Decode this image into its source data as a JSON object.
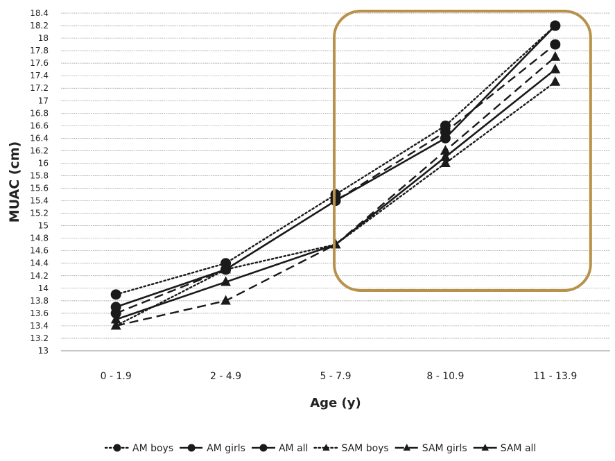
{
  "chart_data": {
    "type": "line",
    "xlabel": "Age (y)",
    "ylabel": "MUAC (cm)",
    "categories": [
      "0 - 1.9",
      "2 - 4.9",
      "5 - 7.9",
      "8 - 10.9",
      "11 - 13.9"
    ],
    "ylim": [
      13,
      18.4
    ],
    "y_ticks": [
      "13",
      "13.2",
      "13.4",
      "13.6",
      "13.8",
      "14",
      "14.2",
      "14.4",
      "14.6",
      "14.8",
      "15",
      "15.2",
      "15.4",
      "15.6",
      "15.8",
      "16",
      "16.2",
      "16.4",
      "16.6",
      "16.8",
      "17",
      "17.2",
      "17.4",
      "17.6",
      "17.8",
      "18",
      "18.2",
      "18.4"
    ],
    "grid": true,
    "legend_position": "bottom",
    "highlight_box": {
      "from_category": "5 - 7.9",
      "to_category": "11 - 13.9",
      "color": "#B8914A"
    },
    "series": [
      {
        "name": "AM boys",
        "style": "dotted",
        "marker": "circle",
        "values": [
          13.9,
          14.4,
          15.5,
          16.6,
          18.2
        ]
      },
      {
        "name": "AM girls",
        "style": "dashed",
        "marker": "circle",
        "values": [
          13.6,
          14.3,
          15.4,
          16.5,
          17.9
        ]
      },
      {
        "name": "AM all",
        "style": "solid",
        "marker": "circle",
        "values": [
          13.7,
          14.3,
          15.4,
          16.4,
          18.2
        ]
      },
      {
        "name": "SAM boys",
        "style": "dotted",
        "marker": "triangle",
        "values": [
          13.4,
          14.3,
          14.7,
          16.0,
          17.3
        ]
      },
      {
        "name": "SAM girls",
        "style": "dashed",
        "marker": "triangle",
        "values": [
          13.4,
          13.8,
          14.7,
          16.2,
          17.7
        ]
      },
      {
        "name": "SAM all",
        "style": "solid",
        "marker": "triangle",
        "values": [
          13.5,
          14.1,
          14.7,
          16.1,
          17.5
        ]
      }
    ]
  }
}
